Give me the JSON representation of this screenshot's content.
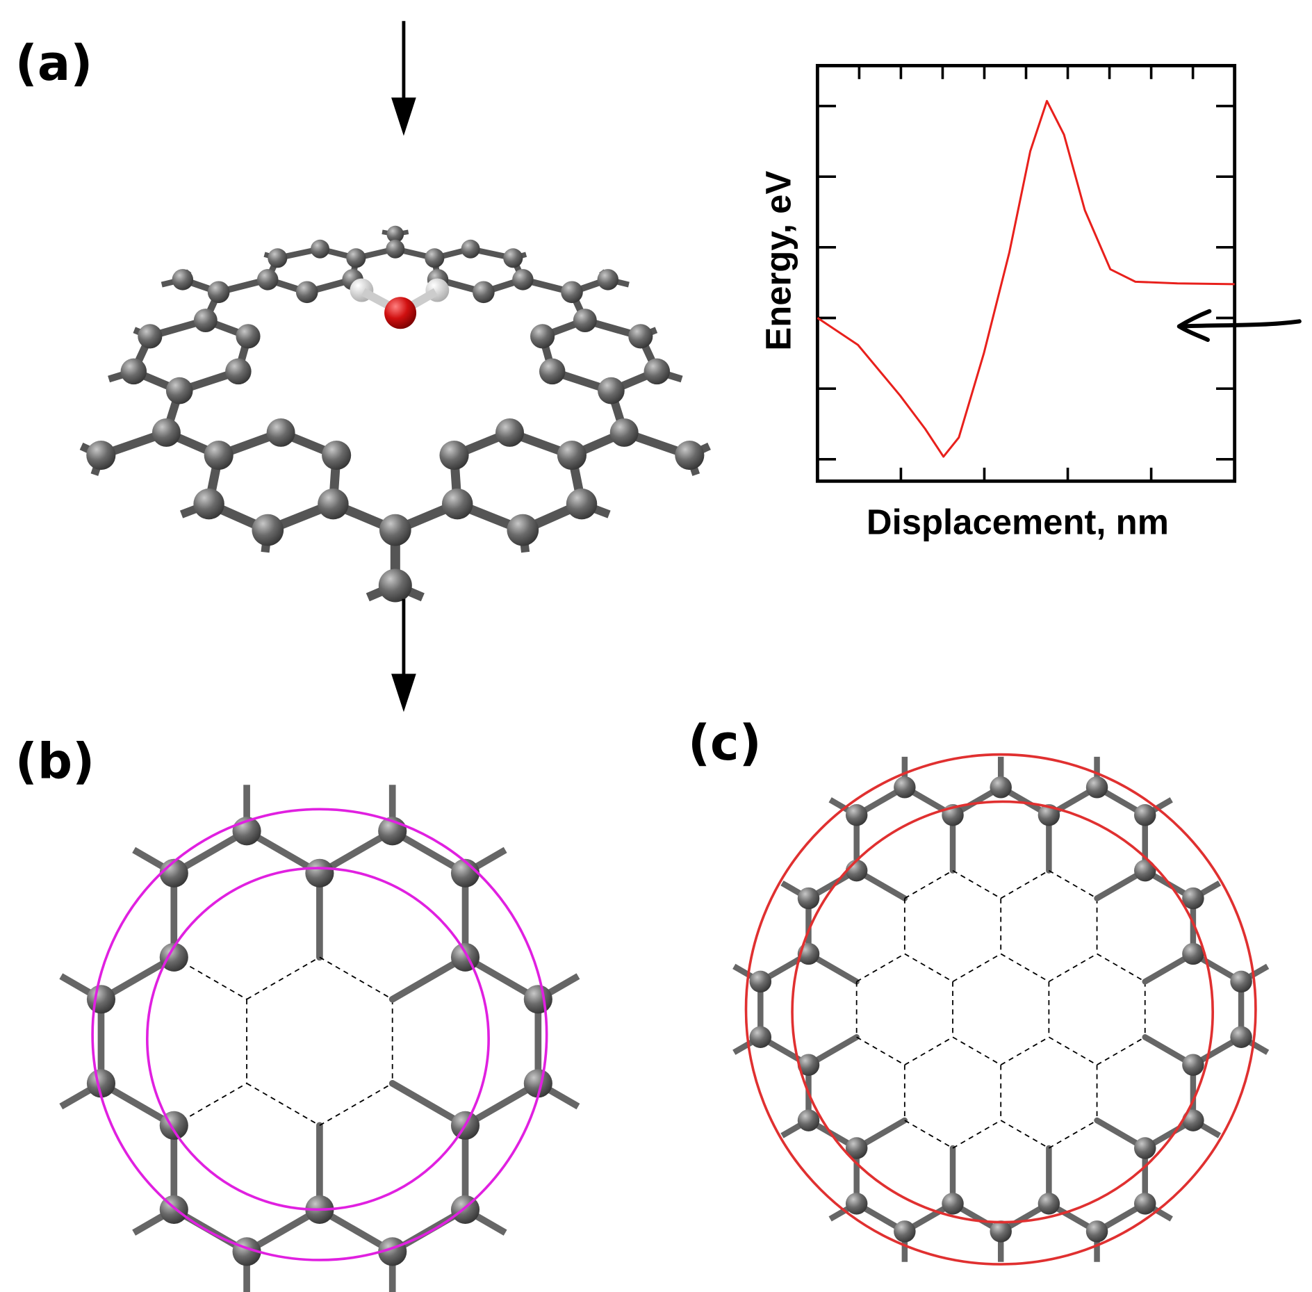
{
  "panels": {
    "a": {
      "label": "(a)"
    },
    "b": {
      "label": "(b)"
    },
    "c": {
      "label": "(c)"
    }
  },
  "chart_data": {
    "type": "line",
    "x_label": "Displacement, nm",
    "y_label": "Energy, eV",
    "x": [
      0,
      0.97,
      1.98,
      2.58,
      3.02,
      3.39,
      3.99,
      4.6,
      5.1,
      5.5,
      5.91,
      6.41,
      7.02,
      7.62,
      8.63,
      10
    ],
    "series": [
      {
        "color": "#e8201c",
        "values": [
          3.93,
          3.28,
          2.06,
          1.26,
          0.59,
          1.05,
          3.08,
          5.51,
          7.94,
          9.15,
          8.34,
          6.52,
          5.1,
          4.8,
          4.76,
          4.74
        ]
      }
    ],
    "xlim": [
      0,
      10
    ],
    "ylim": [
      0,
      10
    ]
  }
}
